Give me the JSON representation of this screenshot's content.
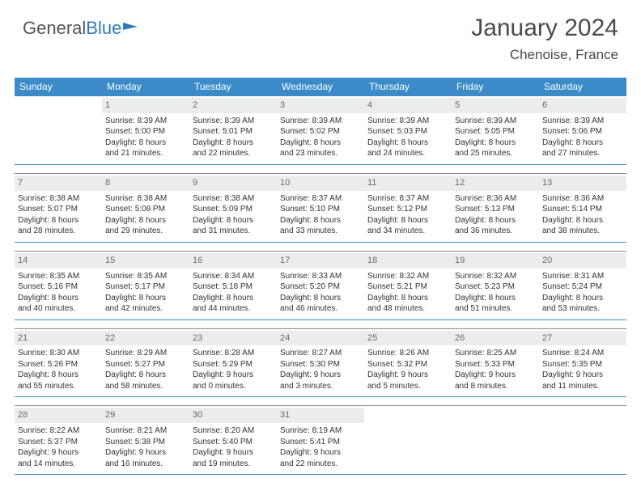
{
  "logo": {
    "part1": "General",
    "part2": "Blue"
  },
  "header": {
    "title": "January 2024",
    "location": "Chenoise, France"
  },
  "colors": {
    "header_bg": "#3b8bc9",
    "header_text": "#ffffff",
    "daynum_bg": "#ececec",
    "daynum_text": "#6a6a6a",
    "border_top": "#888888",
    "border_bottom": "#3b8bc9",
    "body_text": "#333333",
    "title_text": "#4a4a4a",
    "logo_gray": "#555555",
    "logo_blue": "#2b7bbd"
  },
  "fonts": {
    "title_size": 30,
    "subtitle_size": 17,
    "dayhead_size": 12,
    "cell_size": 10,
    "daynum_size": 11
  },
  "dayNames": [
    "Sunday",
    "Monday",
    "Tuesday",
    "Wednesday",
    "Thursday",
    "Friday",
    "Saturday"
  ],
  "weeks": [
    [
      {
        "empty": true
      },
      {
        "day": "1",
        "sunrise": "Sunrise: 8:39 AM",
        "sunset": "Sunset: 5:00 PM",
        "d1": "Daylight: 8 hours",
        "d2": "and 21 minutes."
      },
      {
        "day": "2",
        "sunrise": "Sunrise: 8:39 AM",
        "sunset": "Sunset: 5:01 PM",
        "d1": "Daylight: 8 hours",
        "d2": "and 22 minutes."
      },
      {
        "day": "3",
        "sunrise": "Sunrise: 8:39 AM",
        "sunset": "Sunset: 5:02 PM",
        "d1": "Daylight: 8 hours",
        "d2": "and 23 minutes."
      },
      {
        "day": "4",
        "sunrise": "Sunrise: 8:39 AM",
        "sunset": "Sunset: 5:03 PM",
        "d1": "Daylight: 8 hours",
        "d2": "and 24 minutes."
      },
      {
        "day": "5",
        "sunrise": "Sunrise: 8:39 AM",
        "sunset": "Sunset: 5:05 PM",
        "d1": "Daylight: 8 hours",
        "d2": "and 25 minutes."
      },
      {
        "day": "6",
        "sunrise": "Sunrise: 8:39 AM",
        "sunset": "Sunset: 5:06 PM",
        "d1": "Daylight: 8 hours",
        "d2": "and 27 minutes."
      }
    ],
    [
      {
        "day": "7",
        "sunrise": "Sunrise: 8:38 AM",
        "sunset": "Sunset: 5:07 PM",
        "d1": "Daylight: 8 hours",
        "d2": "and 28 minutes."
      },
      {
        "day": "8",
        "sunrise": "Sunrise: 8:38 AM",
        "sunset": "Sunset: 5:08 PM",
        "d1": "Daylight: 8 hours",
        "d2": "and 29 minutes."
      },
      {
        "day": "9",
        "sunrise": "Sunrise: 8:38 AM",
        "sunset": "Sunset: 5:09 PM",
        "d1": "Daylight: 8 hours",
        "d2": "and 31 minutes."
      },
      {
        "day": "10",
        "sunrise": "Sunrise: 8:37 AM",
        "sunset": "Sunset: 5:10 PM",
        "d1": "Daylight: 8 hours",
        "d2": "and 33 minutes."
      },
      {
        "day": "11",
        "sunrise": "Sunrise: 8:37 AM",
        "sunset": "Sunset: 5:12 PM",
        "d1": "Daylight: 8 hours",
        "d2": "and 34 minutes."
      },
      {
        "day": "12",
        "sunrise": "Sunrise: 8:36 AM",
        "sunset": "Sunset: 5:13 PM",
        "d1": "Daylight: 8 hours",
        "d2": "and 36 minutes."
      },
      {
        "day": "13",
        "sunrise": "Sunrise: 8:36 AM",
        "sunset": "Sunset: 5:14 PM",
        "d1": "Daylight: 8 hours",
        "d2": "and 38 minutes."
      }
    ],
    [
      {
        "day": "14",
        "sunrise": "Sunrise: 8:35 AM",
        "sunset": "Sunset: 5:16 PM",
        "d1": "Daylight: 8 hours",
        "d2": "and 40 minutes."
      },
      {
        "day": "15",
        "sunrise": "Sunrise: 8:35 AM",
        "sunset": "Sunset: 5:17 PM",
        "d1": "Daylight: 8 hours",
        "d2": "and 42 minutes."
      },
      {
        "day": "16",
        "sunrise": "Sunrise: 8:34 AM",
        "sunset": "Sunset: 5:18 PM",
        "d1": "Daylight: 8 hours",
        "d2": "and 44 minutes."
      },
      {
        "day": "17",
        "sunrise": "Sunrise: 8:33 AM",
        "sunset": "Sunset: 5:20 PM",
        "d1": "Daylight: 8 hours",
        "d2": "and 46 minutes."
      },
      {
        "day": "18",
        "sunrise": "Sunrise: 8:32 AM",
        "sunset": "Sunset: 5:21 PM",
        "d1": "Daylight: 8 hours",
        "d2": "and 48 minutes."
      },
      {
        "day": "19",
        "sunrise": "Sunrise: 8:32 AM",
        "sunset": "Sunset: 5:23 PM",
        "d1": "Daylight: 8 hours",
        "d2": "and 51 minutes."
      },
      {
        "day": "20",
        "sunrise": "Sunrise: 8:31 AM",
        "sunset": "Sunset: 5:24 PM",
        "d1": "Daylight: 8 hours",
        "d2": "and 53 minutes."
      }
    ],
    [
      {
        "day": "21",
        "sunrise": "Sunrise: 8:30 AM",
        "sunset": "Sunset: 5:26 PM",
        "d1": "Daylight: 8 hours",
        "d2": "and 55 minutes."
      },
      {
        "day": "22",
        "sunrise": "Sunrise: 8:29 AM",
        "sunset": "Sunset: 5:27 PM",
        "d1": "Daylight: 8 hours",
        "d2": "and 58 minutes."
      },
      {
        "day": "23",
        "sunrise": "Sunrise: 8:28 AM",
        "sunset": "Sunset: 5:29 PM",
        "d1": "Daylight: 9 hours",
        "d2": "and 0 minutes."
      },
      {
        "day": "24",
        "sunrise": "Sunrise: 8:27 AM",
        "sunset": "Sunset: 5:30 PM",
        "d1": "Daylight: 9 hours",
        "d2": "and 3 minutes."
      },
      {
        "day": "25",
        "sunrise": "Sunrise: 8:26 AM",
        "sunset": "Sunset: 5:32 PM",
        "d1": "Daylight: 9 hours",
        "d2": "and 5 minutes."
      },
      {
        "day": "26",
        "sunrise": "Sunrise: 8:25 AM",
        "sunset": "Sunset: 5:33 PM",
        "d1": "Daylight: 9 hours",
        "d2": "and 8 minutes."
      },
      {
        "day": "27",
        "sunrise": "Sunrise: 8:24 AM",
        "sunset": "Sunset: 5:35 PM",
        "d1": "Daylight: 9 hours",
        "d2": "and 11 minutes."
      }
    ],
    [
      {
        "day": "28",
        "sunrise": "Sunrise: 8:22 AM",
        "sunset": "Sunset: 5:37 PM",
        "d1": "Daylight: 9 hours",
        "d2": "and 14 minutes."
      },
      {
        "day": "29",
        "sunrise": "Sunrise: 8:21 AM",
        "sunset": "Sunset: 5:38 PM",
        "d1": "Daylight: 9 hours",
        "d2": "and 16 minutes."
      },
      {
        "day": "30",
        "sunrise": "Sunrise: 8:20 AM",
        "sunset": "Sunset: 5:40 PM",
        "d1": "Daylight: 9 hours",
        "d2": "and 19 minutes."
      },
      {
        "day": "31",
        "sunrise": "Sunrise: 8:19 AM",
        "sunset": "Sunset: 5:41 PM",
        "d1": "Daylight: 9 hours",
        "d2": "and 22 minutes."
      },
      {
        "empty": true
      },
      {
        "empty": true
      },
      {
        "empty": true
      }
    ]
  ]
}
